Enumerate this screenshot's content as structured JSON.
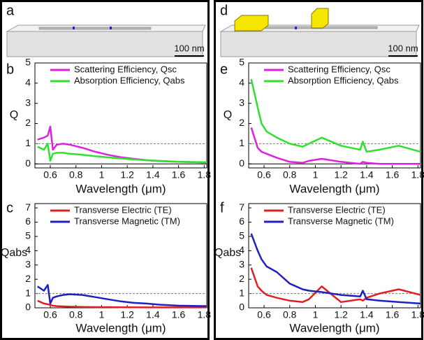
{
  "panel_labels": [
    "a",
    "b",
    "c",
    "d",
    "e",
    "f"
  ],
  "scale_bars": [
    "100 nm",
    "100 nm"
  ],
  "chart_data": [
    {
      "type": "line",
      "xlabel": "Wavelength (μm)",
      "ylabel": "Q",
      "x": [
        0.5,
        0.55,
        0.58,
        0.6,
        0.62,
        0.65,
        0.7,
        0.75,
        0.85,
        0.95,
        1.05,
        1.15,
        1.25,
        1.35,
        1.45,
        1.6,
        1.82
      ],
      "series": [
        {
          "name": "Scattering Efficiency, Qsc",
          "color": "#e020e0",
          "values": [
            1.2,
            1.3,
            1.4,
            1.85,
            0.7,
            0.95,
            1.0,
            0.95,
            0.8,
            0.6,
            0.45,
            0.33,
            0.25,
            0.18,
            0.14,
            0.1,
            0.07
          ]
        },
        {
          "name": "Absorption Efficiency, Qabs",
          "color": "#30e030",
          "values": [
            0.85,
            0.7,
            1.0,
            0.15,
            0.5,
            0.55,
            0.55,
            0.5,
            0.45,
            0.38,
            0.32,
            0.27,
            0.22,
            0.18,
            0.15,
            0.1,
            0.08
          ]
        }
      ],
      "xlim": [
        0.48,
        1.82
      ],
      "xticks": [
        0.6,
        0.8,
        1.0,
        1.2,
        1.4,
        1.6,
        1.8
      ],
      "ylim": [
        -0.2,
        5
      ],
      "yticks": [
        0,
        1,
        2,
        3,
        4,
        5
      ],
      "reference_line": 1
    },
    {
      "type": "line",
      "xlabel": "Wavelength (μm)",
      "ylabel": "Qabs",
      "x": [
        0.5,
        0.55,
        0.58,
        0.6,
        0.62,
        0.65,
        0.7,
        0.75,
        0.85,
        0.95,
        1.05,
        1.15,
        1.25,
        1.35,
        1.45,
        1.6,
        1.82
      ],
      "series": [
        {
          "name": "Transverse Electric (TE)",
          "color": "#e02020",
          "values": [
            0.5,
            0.3,
            0.25,
            0.2,
            0.15,
            0.12,
            0.1,
            0.08,
            0.06,
            0.05,
            0.05,
            0.04,
            0.04,
            0.03,
            0.03,
            0.03,
            0.03
          ]
        },
        {
          "name": "Transverse Magnetic (TM)",
          "color": "#2020c0",
          "values": [
            1.5,
            1.2,
            1.6,
            0.3,
            0.7,
            0.8,
            0.9,
            0.95,
            0.9,
            0.75,
            0.6,
            0.45,
            0.35,
            0.3,
            0.22,
            0.15,
            0.12
          ]
        }
      ],
      "xlim": [
        0.48,
        1.82
      ],
      "xticks": [
        0.6,
        0.8,
        1.0,
        1.2,
        1.4,
        1.6,
        1.8
      ],
      "ylim": [
        0,
        7.3
      ],
      "yticks": [
        0,
        1,
        2,
        3,
        4,
        5,
        6,
        7
      ],
      "reference_line": 1
    },
    {
      "type": "line",
      "xlabel": "Wavelength (μm)",
      "ylabel": "Q",
      "x": [
        0.5,
        0.55,
        0.58,
        0.62,
        0.7,
        0.8,
        0.9,
        0.95,
        1.05,
        1.2,
        1.35,
        1.37,
        1.4,
        1.5,
        1.65,
        1.82
      ],
      "series": [
        {
          "name": "Scattering Efficiency, Qsc",
          "color": "#e020e0",
          "values": [
            1.8,
            0.8,
            0.6,
            0.5,
            0.3,
            0.1,
            0.05,
            0.15,
            0.25,
            0.1,
            0.0,
            0.1,
            0.05,
            0.0,
            0.0,
            0.0
          ]
        },
        {
          "name": "Absorption Efficiency, Qabs",
          "color": "#30e030",
          "values": [
            4.2,
            2.8,
            2.0,
            1.6,
            1.3,
            1.0,
            0.85,
            1.0,
            1.3,
            0.9,
            0.7,
            1.1,
            0.6,
            0.7,
            0.9,
            0.6
          ]
        }
      ],
      "xlim": [
        0.48,
        1.82
      ],
      "xticks": [
        0.6,
        0.8,
        1.0,
        1.2,
        1.4,
        1.6,
        1.8
      ],
      "ylim": [
        -0.2,
        5
      ],
      "yticks": [
        0,
        1,
        2,
        3,
        4,
        5
      ],
      "reference_line": 1
    },
    {
      "type": "line",
      "xlabel": "Wavelength (μm)",
      "ylabel": "Qabs",
      "x": [
        0.5,
        0.55,
        0.58,
        0.62,
        0.7,
        0.8,
        0.9,
        0.95,
        1.05,
        1.2,
        1.35,
        1.37,
        1.4,
        1.5,
        1.65,
        1.82
      ],
      "series": [
        {
          "name": "Transverse Electric (TE)",
          "color": "#e02020",
          "values": [
            2.8,
            1.5,
            1.2,
            0.9,
            0.7,
            0.5,
            0.4,
            0.6,
            1.5,
            0.4,
            0.6,
            0.5,
            0.7,
            1.0,
            1.3,
            0.9
          ]
        },
        {
          "name": "Transverse Magnetic (TM)",
          "color": "#2020c0",
          "values": [
            5.2,
            4.0,
            3.4,
            2.9,
            2.5,
            1.7,
            1.3,
            1.2,
            1.1,
            0.9,
            0.8,
            1.2,
            0.6,
            0.5,
            0.4,
            0.3
          ]
        }
      ],
      "xlim": [
        0.48,
        1.82
      ],
      "xticks": [
        0.6,
        0.8,
        1.0,
        1.2,
        1.4,
        1.6,
        1.8
      ],
      "ylim": [
        0,
        7.3
      ],
      "yticks": [
        0,
        1,
        2,
        3,
        4,
        5,
        6,
        7
      ],
      "reference_line": 1
    }
  ]
}
